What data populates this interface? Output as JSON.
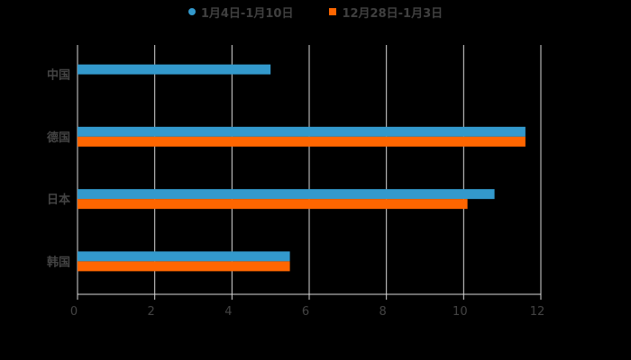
{
  "chart_data": {
    "type": "bar",
    "orientation": "horizontal",
    "title": "",
    "xlabel": "",
    "ylabel": "",
    "categories": [
      "中国",
      "德国",
      "日本",
      "韩国"
    ],
    "series": [
      {
        "name": "1月4日-1月10日",
        "color": "#3399CC",
        "values": [
          5.0,
          11.6,
          10.8,
          5.5
        ]
      },
      {
        "name": "12月28日-1月3日",
        "color": "#FF6600",
        "values": [
          null,
          11.6,
          10.1,
          5.5
        ]
      }
    ],
    "xlim": [
      0,
      12
    ],
    "xticks": [
      "0",
      "2",
      "4",
      "6",
      "8",
      "10",
      "12"
    ],
    "grid": true,
    "legend_position": "top"
  },
  "legend": {
    "items": [
      {
        "label": "1月4日-1月10日",
        "color": "#3399CC",
        "marker": "circle"
      },
      {
        "label": "12月28日-1月3日",
        "color": "#FF6600",
        "marker": "square"
      }
    ]
  },
  "colors": {
    "background": "#000000",
    "gridline": "#D9D9D9",
    "text": "#444444"
  }
}
